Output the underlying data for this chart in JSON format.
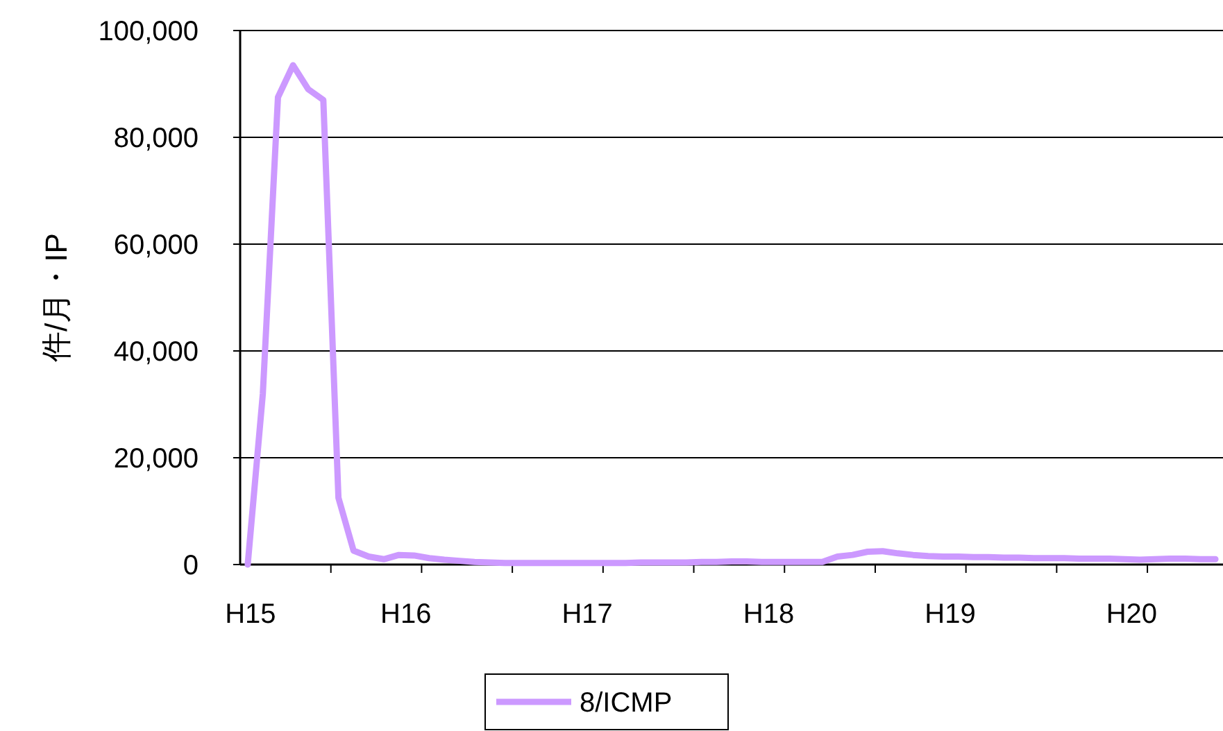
{
  "chart_data": {
    "type": "line",
    "ylabel": "件/月・IP",
    "legend": "bottom",
    "grid": "y",
    "marker": "none",
    "line_style": "solid",
    "ylim": [
      0,
      100000
    ],
    "yticks": [
      {
        "value": 0,
        "label": "0"
      },
      {
        "value": 20000,
        "label": "20,000"
      },
      {
        "value": 40000,
        "label": "40,000"
      },
      {
        "value": 60000,
        "label": "60,000"
      },
      {
        "value": 80000,
        "label": "80,000"
      },
      {
        "value": 100000,
        "label": "100,000"
      }
    ],
    "categories": [
      "H15",
      null,
      null,
      null,
      null,
      null,
      null,
      null,
      null,
      null,
      "H16",
      null,
      null,
      null,
      null,
      null,
      null,
      null,
      null,
      null,
      null,
      null,
      "H17",
      null,
      null,
      null,
      null,
      null,
      null,
      null,
      null,
      null,
      null,
      null,
      "H18",
      null,
      null,
      null,
      null,
      null,
      null,
      null,
      null,
      null,
      null,
      null,
      "H19",
      null,
      null,
      null,
      null,
      null,
      null,
      null,
      null,
      null,
      null,
      null,
      "H20",
      null,
      null,
      null,
      null,
      null,
      null
    ],
    "series": [
      {
        "name": "8/ICMP",
        "color": "#cc99ff",
        "values": [
          0,
          32000,
          87500,
          93500,
          89000,
          87000,
          12500,
          2600,
          1500,
          1000,
          1800,
          1700,
          1200,
          900,
          700,
          500,
          400,
          300,
          300,
          300,
          300,
          300,
          300,
          300,
          300,
          300,
          400,
          400,
          400,
          400,
          500,
          500,
          600,
          600,
          500,
          500,
          500,
          500,
          500,
          1500,
          1800,
          2400,
          2500,
          2100,
          1800,
          1600,
          1500,
          1500,
          1400,
          1400,
          1300,
          1300,
          1200,
          1200,
          1200,
          1100,
          1100,
          1100,
          1000,
          900,
          1000,
          1100,
          1100,
          1000,
          1000
        ]
      }
    ]
  }
}
